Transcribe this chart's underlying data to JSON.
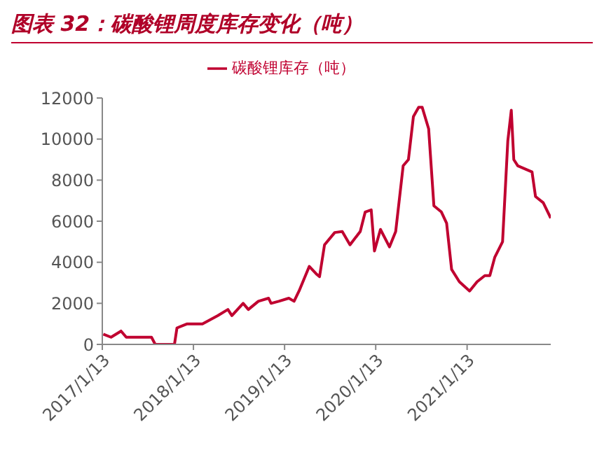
{
  "chart_data": {
    "type": "line",
    "title": "图表 32：碳酸锂周度库存变化（吨）",
    "x": [
      "2017-01-17",
      "2017-02-17",
      "2017-03-29",
      "2017-04-19",
      "2017-07-29",
      "2017-08-13",
      "2017-10-29",
      "2017-11-08",
      "2017-12-19",
      "2018-02-18",
      "2018-04-20",
      "2018-05-31",
      "2018-06-16",
      "2018-07-31",
      "2018-08-21",
      "2018-09-30",
      "2018-11-10",
      "2018-11-20",
      "2018-12-21",
      "2019-01-30",
      "2019-02-20",
      "2019-03-12",
      "2019-04-22",
      "2019-05-23",
      "2019-06-02",
      "2019-06-22",
      "2019-08-02",
      "2019-09-01",
      "2019-10-02",
      "2019-11-12",
      "2019-12-02",
      "2019-12-26",
      "2020-01-08",
      "2020-02-01",
      "2020-03-08",
      "2020-04-02",
      "2020-05-02",
      "2020-05-23",
      "2020-06-12",
      "2020-07-03",
      "2020-07-17",
      "2020-08-12",
      "2020-09-02",
      "2020-10-02",
      "2020-10-23",
      "2020-11-12",
      "2020-12-13",
      "2021-01-23",
      "2021-02-22",
      "2021-03-25",
      "2021-04-14",
      "2021-05-04",
      "2021-06-04",
      "2021-06-25",
      "2021-07-09",
      "2021-07-19",
      "2021-08-04",
      "2021-09-30",
      "2021-10-14",
      "2021-11-14",
      "2021-12-14"
    ],
    "series": [
      {
        "name": "碳酸锂库存（吨）",
        "color": "#c00030",
        "values": [
          500,
          350,
          650,
          350,
          350,
          0,
          0,
          800,
          1000,
          1000,
          1400,
          1700,
          1400,
          2000,
          1700,
          2100,
          2250,
          2000,
          2100,
          2250,
          2100,
          2600,
          3800,
          3400,
          3300,
          4850,
          5450,
          5500,
          4850,
          5500,
          6450,
          6550,
          4550,
          5600,
          4750,
          5500,
          8700,
          9000,
          11100,
          11550,
          11550,
          10500,
          6750,
          6450,
          5900,
          3650,
          3050,
          2600,
          3050,
          3350,
          3350,
          4250,
          5000,
          9900,
          11400,
          9000,
          8700,
          8400,
          7200,
          6900,
          6150
        ]
      }
    ],
    "xlim": [
      "2017-01-13",
      "2021-12-14"
    ],
    "xticks": [
      {
        "value": "2017-01-13",
        "label": "2017/1/13"
      },
      {
        "value": "2018-01-13",
        "label": "2018/1/13"
      },
      {
        "value": "2019-01-13",
        "label": "2019/1/13"
      },
      {
        "value": "2020-01-13",
        "label": "2020/1/13"
      },
      {
        "value": "2021-01-13",
        "label": "2021/1/13"
      }
    ],
    "ylim": [
      0,
      12000
    ],
    "yticks": [
      0,
      2000,
      4000,
      6000,
      8000,
      10000,
      12000
    ],
    "legend": "top",
    "line_style": "solid",
    "marker": "none"
  }
}
